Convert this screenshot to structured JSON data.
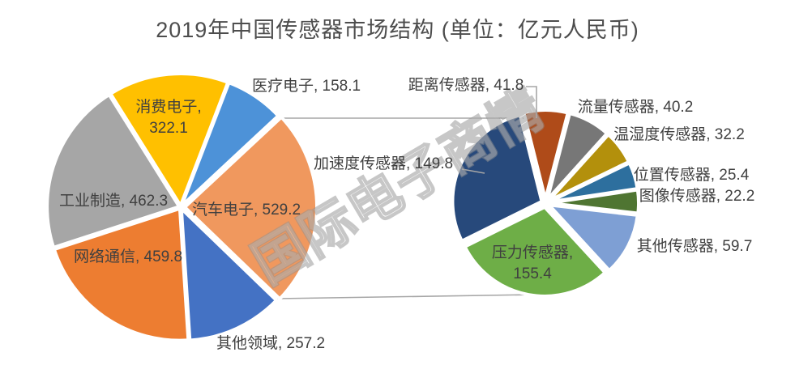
{
  "title": "2019年中国传感器市场结构 (单位：亿元人民币)",
  "watermark": "国际电子商情",
  "text_color": "#404040",
  "connector_color": "#a6a6a6",
  "background_color": "#ffffff",
  "chart_data": [
    {
      "type": "pie",
      "name": "market-by-application",
      "legend_position": "none",
      "start_angle": -32,
      "items": [
        {
          "label": "消费电子",
          "value": 322.1,
          "color": "#FFC000"
        },
        {
          "label": "医疗电子",
          "value": 158.1,
          "color": "#4D92D8"
        },
        {
          "label": "汽车电子",
          "value": 529.2,
          "color": "#F0985E"
        },
        {
          "label": "其他领域",
          "value": 257.2,
          "color": "#4472C4"
        },
        {
          "label": "网络通信",
          "value": 459.8,
          "color": "#ED7D31"
        },
        {
          "label": "工业制造",
          "value": 462.3,
          "color": "#A6A6A6"
        }
      ]
    },
    {
      "type": "pie",
      "name": "market-by-sensor-type",
      "legend_position": "none",
      "start_angle": -14,
      "items": [
        {
          "label": "距离传感器",
          "value": 41.8,
          "color": "#AF4B19"
        },
        {
          "label": "流量传感器",
          "value": 40.2,
          "color": "#777777"
        },
        {
          "label": "温湿度传感器",
          "value": 32.2,
          "color": "#B3900C"
        },
        {
          "label": "位置传感器",
          "value": 25.4,
          "color": "#2D6F9E"
        },
        {
          "label": "图像传感器",
          "value": 22.2,
          "color": "#4F7532"
        },
        {
          "label": "其他传感器",
          "value": 59.7,
          "color": "#7E9FD4"
        },
        {
          "label": "压力传感器",
          "value": 155.4,
          "color": "#6EAE47"
        },
        {
          "label": "加速度传感器",
          "value": 149.8,
          "color": "#27497B"
        }
      ]
    }
  ]
}
